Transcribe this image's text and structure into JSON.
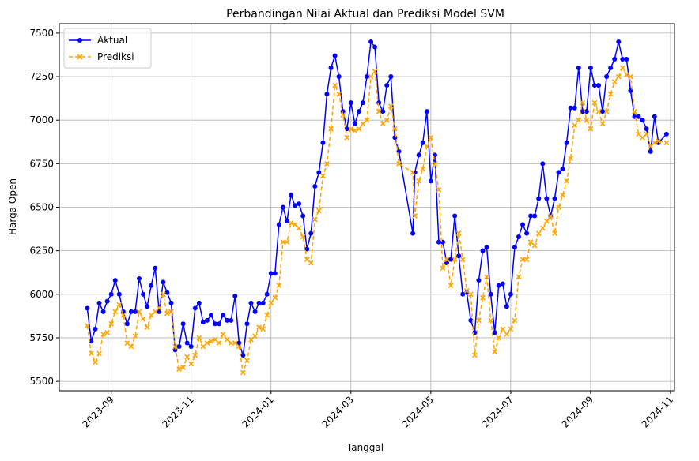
{
  "chart_data": {
    "type": "line",
    "title": "Perbandingan Nilai Aktual dan Prediksi Model SVM",
    "xlabel": "Tanggal",
    "ylabel": "Harga Open",
    "x": [
      24283.4,
      24283.5,
      24283.6,
      24283.7,
      24283.8,
      24283.9,
      24284.0,
      24284.1,
      24284.2,
      24284.3,
      24284.4,
      24284.5,
      24284.6,
      24284.7,
      24284.8,
      24284.9,
      24285.0,
      24285.1,
      24285.2,
      24285.3,
      24285.4,
      24285.5,
      24285.6,
      24285.7,
      24285.8,
      24285.9,
      24286.0,
      24286.1,
      24286.2,
      24286.3,
      24286.4,
      24286.5,
      24286.6,
      24286.7,
      24286.8,
      24286.9,
      24287.0,
      24287.1,
      24287.2,
      24287.3,
      24287.4,
      24287.5,
      24287.6,
      24287.7,
      24287.8,
      24287.9,
      24288.0,
      24288.1,
      24288.2,
      24288.3,
      24288.4,
      24288.5,
      24288.6,
      24288.7,
      24288.8,
      24288.9,
      24289.0,
      24289.1,
      24289.2,
      24289.3,
      24289.4,
      24289.5,
      24289.6,
      24289.7,
      24289.8,
      24289.9,
      24290.0,
      24290.1,
      24290.2,
      24290.3,
      24290.4,
      24290.5,
      24290.6,
      24290.7,
      24290.8,
      24290.9,
      24291.0,
      24291.1,
      24291.2,
      24291.55,
      24291.6,
      24291.7,
      24291.8,
      24291.9,
      24292.0,
      24292.1,
      24292.2,
      24292.3,
      24292.4,
      24292.5,
      24292.6,
      24292.7,
      24292.8,
      24292.9,
      24293.0,
      24293.1,
      24293.2,
      24293.3,
      24293.4,
      24293.5,
      24293.6,
      24293.7,
      24293.8,
      24293.9,
      24294.0,
      24294.1,
      24294.2,
      24294.3,
      24294.4,
      24294.5,
      24294.6,
      24294.7,
      24294.8,
      24294.9,
      24295.0,
      24295.1,
      24295.2,
      24295.3,
      24295.4,
      24295.5,
      24295.6,
      24295.7,
      24295.8,
      24295.9,
      24296.0,
      24296.1,
      24296.2,
      24296.3,
      24296.4,
      24296.5,
      24296.6,
      24296.7,
      24296.8,
      24296.9,
      24297.0,
      24297.1,
      24297.2,
      24297.3,
      24297.4,
      24297.5,
      24297.6,
      24297.7,
      24297.9
    ],
    "series": [
      {
        "name": "Aktual",
        "color": "#0000ff",
        "style": "solid",
        "marker": "circle",
        "values": [
          5920,
          5730,
          5800,
          5950,
          5900,
          5960,
          6000,
          6080,
          6000,
          5900,
          5830,
          5900,
          5900,
          6090,
          6000,
          5930,
          6050,
          6150,
          5900,
          6070,
          6010,
          5950,
          5680,
          5700,
          5830,
          5720,
          5700,
          5920,
          5950,
          5840,
          5850,
          5880,
          5830,
          5830,
          5880,
          5850,
          5850,
          5990,
          5720,
          5650,
          5830,
          5950,
          5900,
          5950,
          5950,
          6000,
          6120,
          6120,
          6400,
          6500,
          6420,
          6570,
          6510,
          6520,
          6450,
          6260,
          6350,
          6620,
          6700,
          6870,
          7150,
          7300,
          7370,
          7250,
          7050,
          6950,
          7100,
          6980,
          7050,
          7100,
          7250,
          7450,
          7420,
          7100,
          7050,
          7200,
          7250,
          6900,
          6820,
          6350,
          6700,
          6800,
          6870,
          7050,
          6650,
          6800,
          6300,
          6300,
          6180,
          6200,
          6450,
          6220,
          6000,
          6010,
          5850,
          5780,
          6080,
          6250,
          6270,
          6000,
          5780,
          6050,
          6060,
          5930,
          6000,
          6270,
          6330,
          6400,
          6350,
          6450,
          6450,
          6550,
          6750,
          6550,
          6450,
          6550,
          6700,
          6720,
          6870,
          7070,
          7070,
          7300,
          7050,
          7050,
          7300,
          7200,
          7200,
          7050,
          7250,
          7300,
          7350,
          7450,
          7350,
          7350,
          7170,
          7020,
          7020,
          7000,
          6950,
          6820,
          7020,
          6870,
          6920
        ]
      },
      {
        "name": "Prediksi",
        "color": "#ffa500",
        "style": "dashed",
        "marker": "x",
        "values": [
          5820,
          5660,
          5610,
          5660,
          5770,
          5780,
          5830,
          5900,
          5940,
          5880,
          5720,
          5700,
          5760,
          5900,
          5860,
          5810,
          5880,
          5900,
          5920,
          6000,
          5890,
          5900,
          5700,
          5570,
          5580,
          5640,
          5600,
          5650,
          5750,
          5700,
          5720,
          5730,
          5740,
          5720,
          5770,
          5740,
          5720,
          5720,
          5700,
          5550,
          5620,
          5740,
          5760,
          5810,
          5800,
          5880,
          5950,
          5980,
          6050,
          6300,
          6300,
          6410,
          6400,
          6380,
          6330,
          6200,
          6180,
          6430,
          6480,
          6680,
          6750,
          6950,
          7200,
          7150,
          7030,
          6900,
          6950,
          6940,
          6950,
          6980,
          7000,
          7250,
          7280,
          7050,
          6980,
          7000,
          7080,
          6950,
          6750,
          6700,
          6450,
          6650,
          6720,
          6850,
          6900,
          6750,
          6600,
          6150,
          6200,
          6050,
          6200,
          6350,
          6200,
          6020,
          6000,
          5650,
          5850,
          5980,
          6100,
          5850,
          5670,
          5750,
          5800,
          5770,
          5800,
          5850,
          6100,
          6200,
          6200,
          6300,
          6280,
          6350,
          6380,
          6420,
          6450,
          6350,
          6500,
          6570,
          6650,
          6780,
          6970,
          7000,
          7100,
          7000,
          6950,
          7100,
          7050,
          6980,
          7050,
          7150,
          7220,
          7250,
          7300,
          7260,
          7250,
          7050,
          6920,
          6900,
          6920,
          6850,
          6870,
          6880,
          6870
        ]
      }
    ],
    "xlim": [
      24282.7,
      24298.1
    ],
    "xticks": [
      {
        "value": 24284,
        "label": "2023-09"
      },
      {
        "value": 24286,
        "label": "2023-11"
      },
      {
        "value": 24288,
        "label": "2024-01"
      },
      {
        "value": 24290,
        "label": "2024-03"
      },
      {
        "value": 24292,
        "label": "2024-05"
      },
      {
        "value": 24294,
        "label": "2024-07"
      },
      {
        "value": 24296,
        "label": "2024-09"
      },
      {
        "value": 24298,
        "label": "2024-11"
      }
    ],
    "ylim": [
      5446,
      7554
    ],
    "yticks": [
      5500,
      5750,
      6000,
      6250,
      6500,
      6750,
      7000,
      7250,
      7500
    ],
    "grid": true,
    "legend": "upper left"
  }
}
